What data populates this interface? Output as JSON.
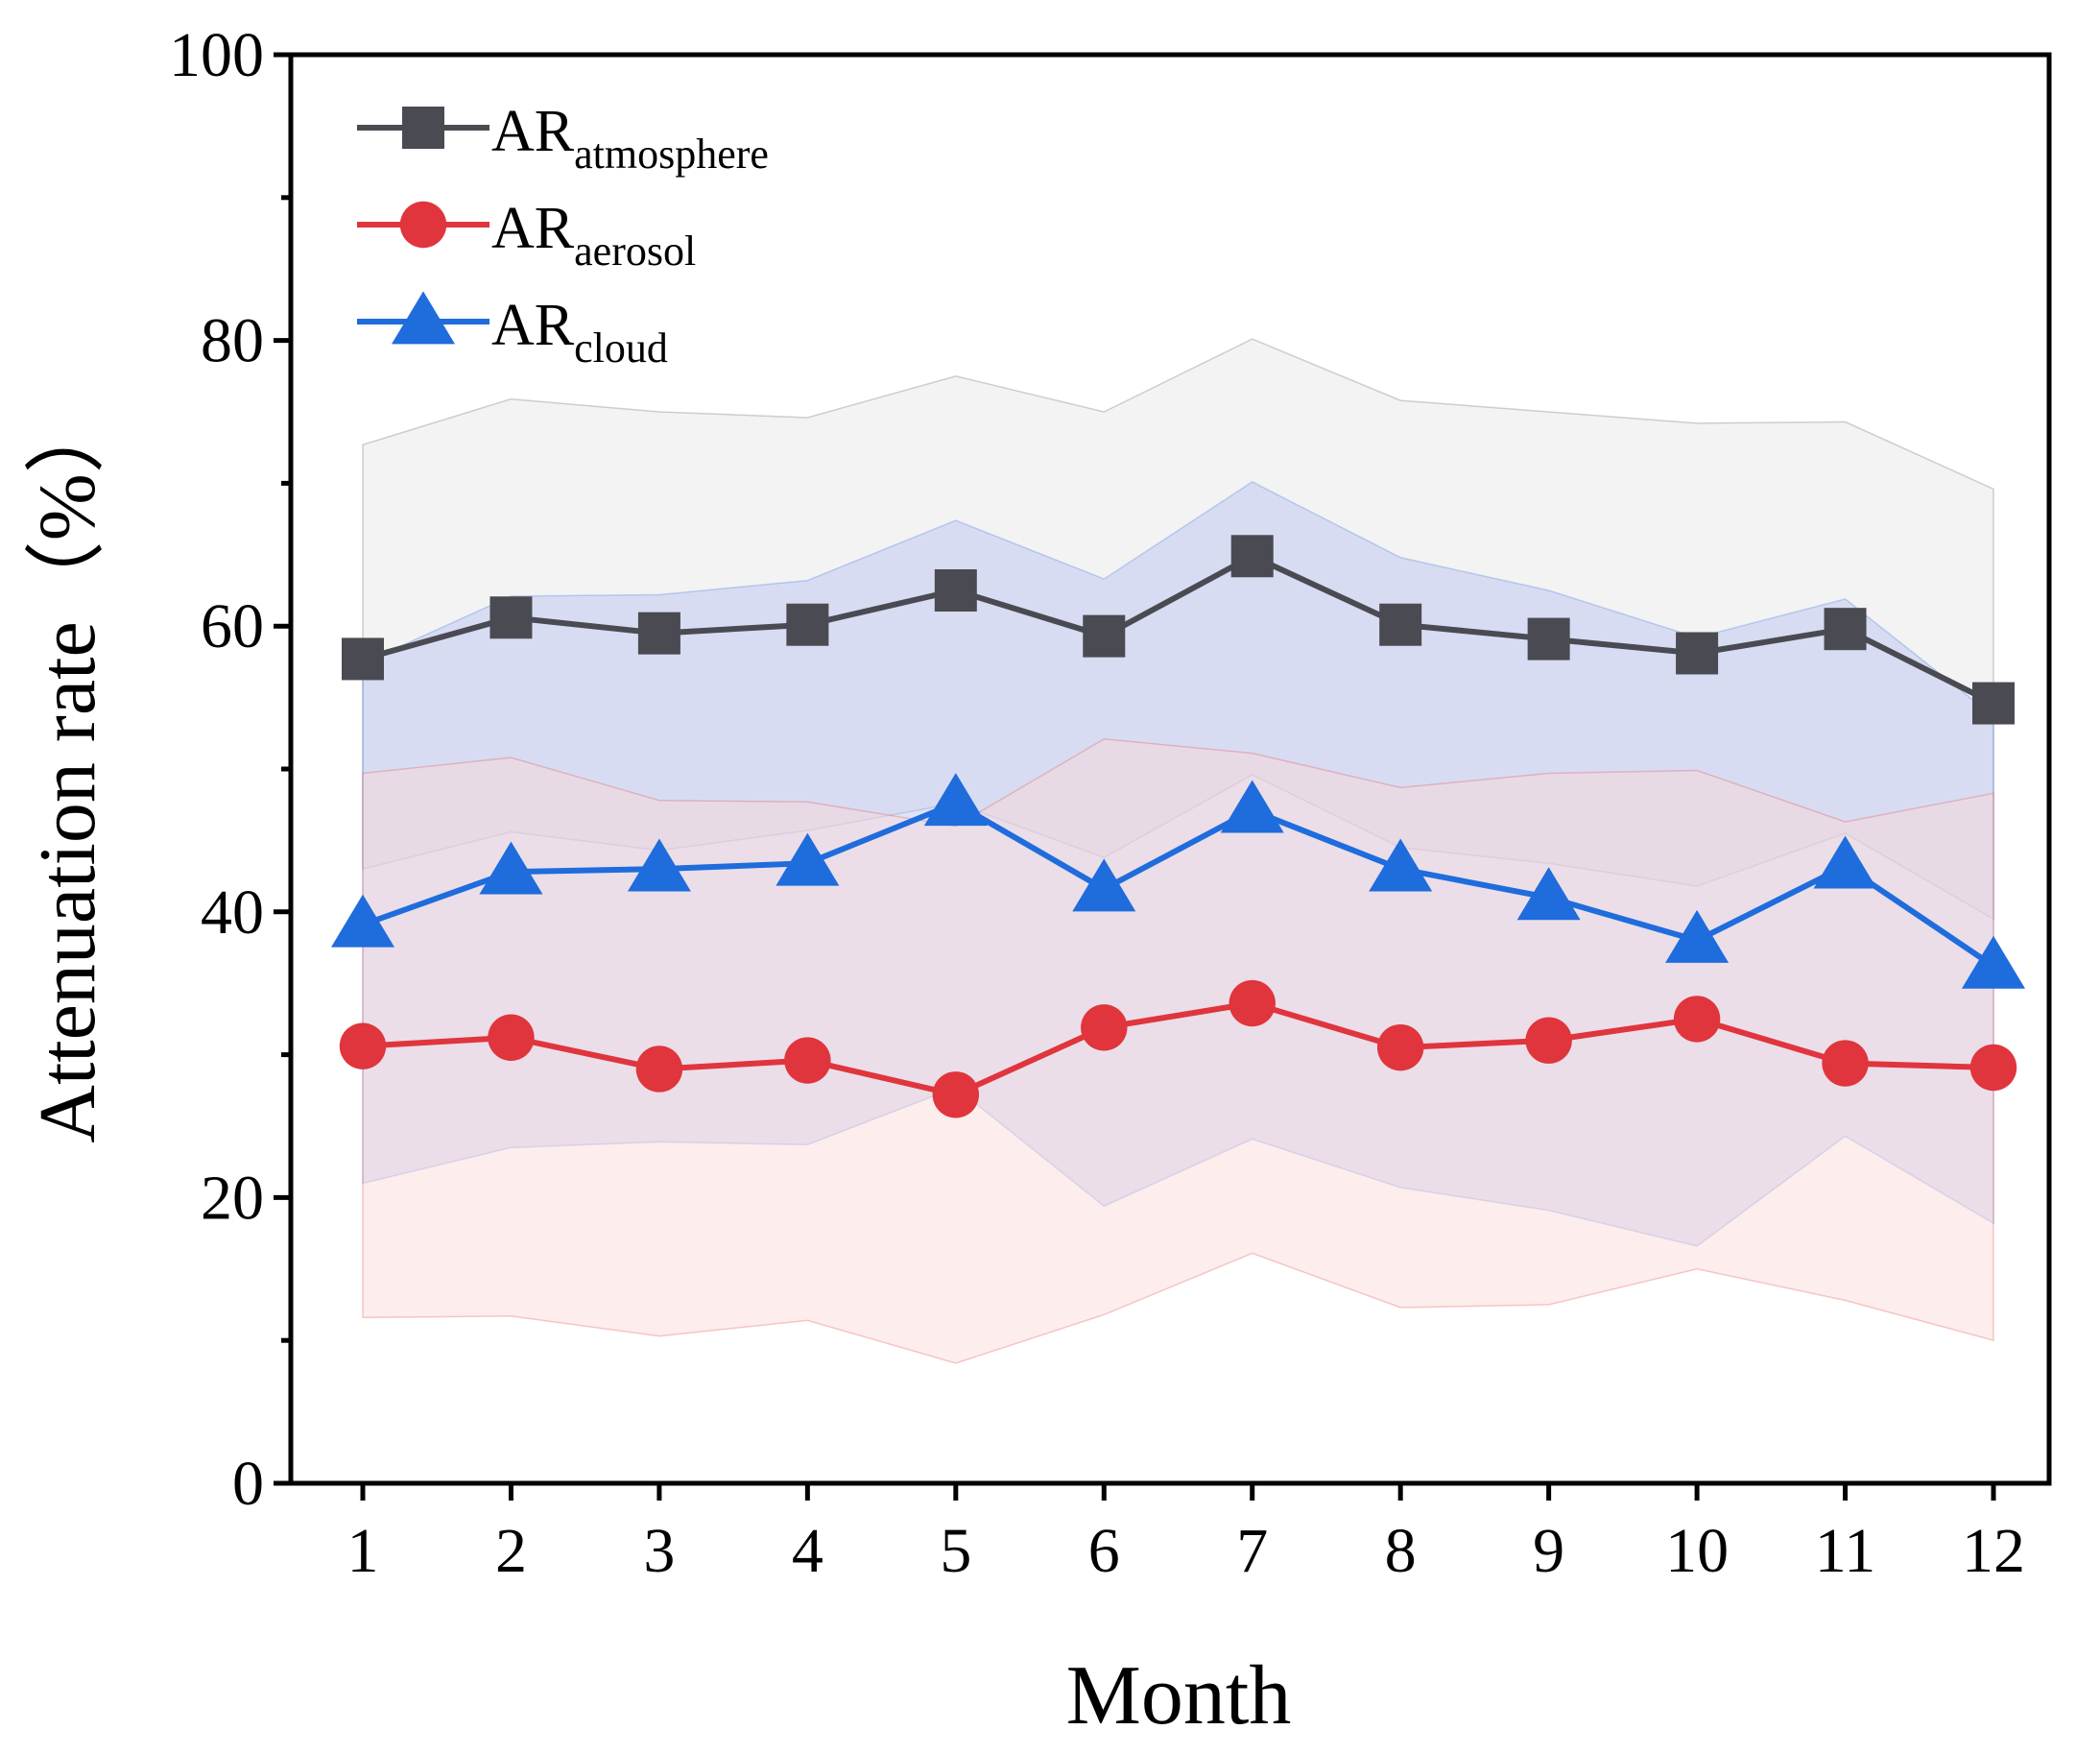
{
  "chart_data": {
    "type": "line",
    "title": "",
    "xlabel": "Month",
    "ylabel": "Attenuation rate（%）",
    "x": [
      1,
      2,
      3,
      4,
      5,
      6,
      7,
      8,
      9,
      10,
      11,
      12
    ],
    "xticks": [
      "1",
      "2",
      "3",
      "4",
      "5",
      "6",
      "7",
      "8",
      "9",
      "10",
      "11",
      "12"
    ],
    "yticks": [
      "0",
      "20",
      "40",
      "60",
      "80",
      "100"
    ],
    "ylim": [
      0,
      100
    ],
    "xlim": [
      0.5,
      12.4
    ],
    "grid": false,
    "legend_position": "top-left",
    "series": [
      {
        "name": "AR",
        "subscript": "atmosphere",
        "marker": "square",
        "color": "#4a4b52",
        "band_color": "#e4e4e4",
        "values": [
          57.7,
          60.6,
          59.5,
          60.1,
          62.5,
          59.3,
          64.9,
          60.1,
          59.1,
          58.1,
          59.8,
          54.6
        ],
        "upper": [
          72.7,
          75.9,
          75.0,
          74.6,
          77.5,
          75.0,
          80.1,
          75.8,
          75.0,
          74.2,
          74.3,
          69.6
        ],
        "lower": [
          43.0,
          45.6,
          44.3,
          45.7,
          47.6,
          43.8,
          49.6,
          44.5,
          43.4,
          41.8,
          45.5,
          39.5
        ]
      },
      {
        "name": "AR",
        "subscript": "aerosol",
        "marker": "circle",
        "color": "#e0353d",
        "band_color": "#fbd6d4",
        "values": [
          30.6,
          31.2,
          29.0,
          29.6,
          27.2,
          31.9,
          33.6,
          30.5,
          31.0,
          32.5,
          29.4,
          29.1
        ],
        "upper": [
          49.7,
          50.8,
          47.8,
          47.7,
          46.0,
          52.1,
          51.1,
          48.7,
          49.7,
          49.9,
          46.3,
          48.3
        ],
        "lower": [
          11.6,
          11.7,
          10.3,
          11.4,
          8.4,
          11.8,
          16.1,
          12.3,
          12.5,
          15.0,
          12.8,
          10.0
        ]
      },
      {
        "name": "AR",
        "subscript": "cloud",
        "marker": "triangle",
        "color": "#1f6cdc",
        "band_color": "#b9c2f2",
        "values": [
          39.1,
          42.8,
          43.0,
          43.4,
          47.6,
          41.6,
          47.1,
          43.0,
          41.0,
          38.0,
          43.2,
          36.2
        ],
        "upper": [
          57.4,
          62.1,
          62.2,
          63.2,
          67.4,
          63.3,
          70.1,
          64.8,
          62.5,
          59.2,
          61.9,
          53.7
        ],
        "lower": [
          21.0,
          23.5,
          23.9,
          23.7,
          27.7,
          19.4,
          24.1,
          20.7,
          19.1,
          16.6,
          24.3,
          18.2
        ]
      }
    ]
  }
}
